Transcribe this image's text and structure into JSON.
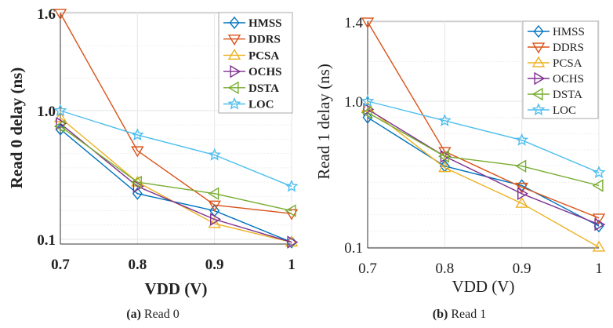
{
  "colors": {
    "HMSS": "#0072BD",
    "DDRS": "#D95319",
    "PCSA": "#EDB120",
    "OCHS": "#7E2F8E",
    "DSTA": "#77AC30",
    "LOC": "#4DBEEE"
  },
  "chart_data": [
    {
      "type": "line",
      "caption_prefix": "(a)",
      "caption": "Read 0",
      "xlabel": "VDD (V)",
      "ylabel": "Read 0 delay (ns)",
      "x": [
        0.7,
        0.8,
        0.9,
        1.0
      ],
      "xtick_labels": [
        "0.7",
        "0.8",
        "0.9",
        "1"
      ],
      "yticks": [
        0.1,
        1.0,
        1.6
      ],
      "ytick_labels": [
        "0.1",
        "1.0",
        "1.6"
      ],
      "grid": true,
      "legend_position": "top-right",
      "series": [
        {
          "name": "HMSS",
          "marker": "diamond",
          "values": [
            0.87,
            0.42,
            0.3,
            0.08
          ]
        },
        {
          "name": "DDRS",
          "marker": "triangle-down",
          "values": [
            1.6,
            0.72,
            0.34,
            0.28
          ]
        },
        {
          "name": "PCSA",
          "marker": "triangle-up",
          "values": [
            0.95,
            0.5,
            0.21,
            0.08
          ]
        },
        {
          "name": "OCHS",
          "marker": "triangle-right",
          "values": [
            0.91,
            0.47,
            0.24,
            0.08
          ]
        },
        {
          "name": "DSTA",
          "marker": "triangle-left",
          "values": [
            0.89,
            0.5,
            0.42,
            0.3
          ]
        },
        {
          "name": "LOC",
          "marker": "star",
          "values": [
            1.0,
            0.83,
            0.69,
            0.47
          ]
        }
      ]
    },
    {
      "type": "line",
      "caption_prefix": "(b)",
      "caption": "Read 1",
      "xlabel": "VDD (V)",
      "ylabel": "Read 1 delay (ns)",
      "x": [
        0.7,
        0.8,
        0.9,
        1.0
      ],
      "xtick_labels": [
        "0.7",
        "0.8",
        "0.9",
        "1"
      ],
      "yticks": [
        0.1,
        1.0,
        1.4
      ],
      "ytick_labels": [
        "0.1",
        "1.0",
        "1.4"
      ],
      "grid": true,
      "legend_position": "top-right",
      "series": [
        {
          "name": "HMSS",
          "marker": "diamond",
          "values": [
            0.9,
            0.6,
            0.48,
            0.23
          ]
        },
        {
          "name": "DDRS",
          "marker": "triangle-down",
          "values": [
            1.4,
            0.69,
            0.47,
            0.28
          ]
        },
        {
          "name": "PCSA",
          "marker": "triangle-up",
          "values": [
            0.96,
            0.59,
            0.37,
            0.1
          ]
        },
        {
          "name": "OCHS",
          "marker": "triangle-right",
          "values": [
            0.95,
            0.66,
            0.43,
            0.24
          ]
        },
        {
          "name": "DSTA",
          "marker": "triangle-left",
          "values": [
            0.93,
            0.66,
            0.6,
            0.48
          ]
        },
        {
          "name": "LOC",
          "marker": "star",
          "values": [
            1.0,
            0.88,
            0.76,
            0.56
          ]
        }
      ]
    }
  ]
}
